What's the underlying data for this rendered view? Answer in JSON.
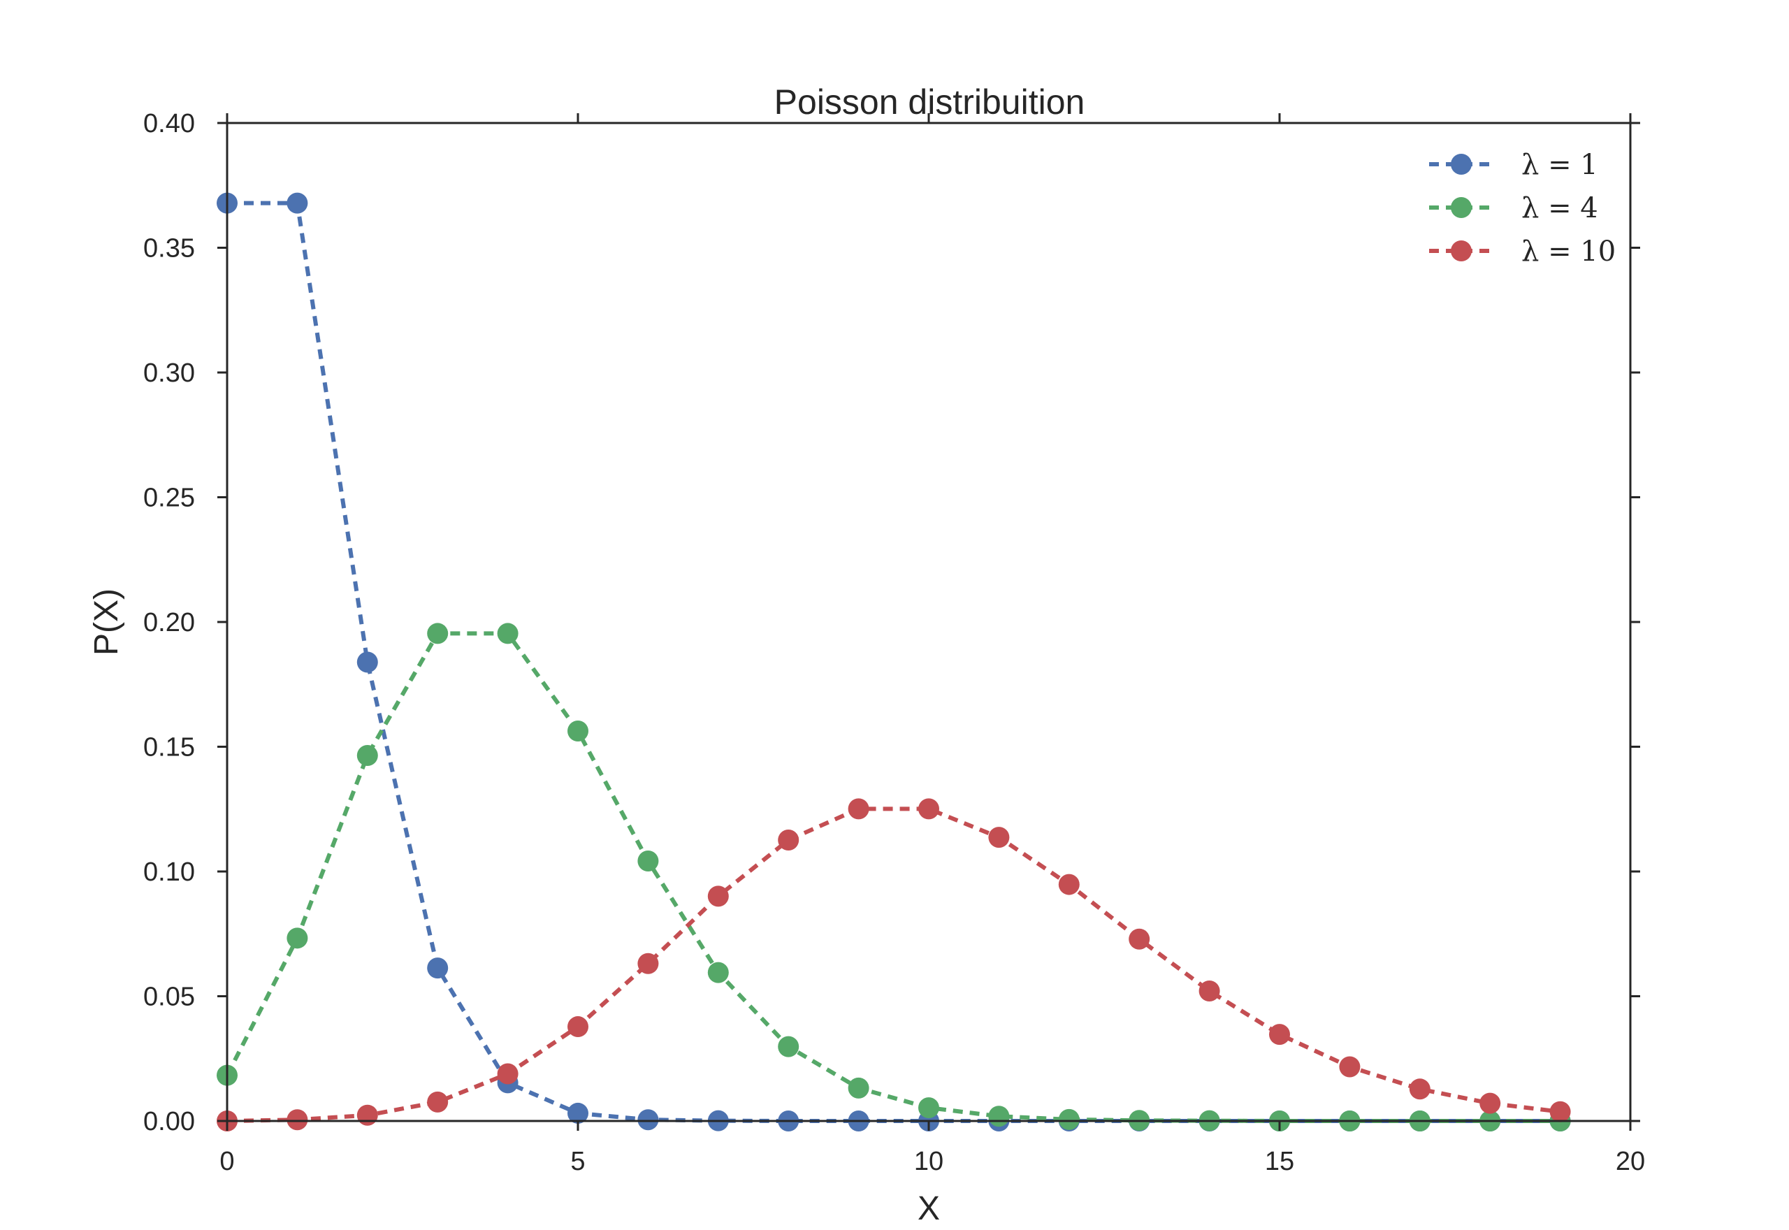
{
  "chart_data": {
    "type": "line",
    "title": "Poisson distribuition",
    "xlabel": "X",
    "ylabel": "P(X)",
    "xlim": [
      0,
      20
    ],
    "ylim": [
      0,
      0.4
    ],
    "xticks": [
      "0",
      "5",
      "10",
      "15",
      "20"
    ],
    "yticks": [
      "0.00",
      "0.05",
      "0.10",
      "0.15",
      "0.20",
      "0.25",
      "0.30",
      "0.35",
      "0.40"
    ],
    "grid": false,
    "legend_position": "top-right",
    "x": [
      0,
      1,
      2,
      3,
      4,
      5,
      6,
      7,
      8,
      9,
      10,
      11,
      12,
      13,
      14,
      15,
      16,
      17,
      18,
      19
    ],
    "series": [
      {
        "name": "λ = 1",
        "color": "#4c72b0",
        "values": [
          0.3679,
          0.3679,
          0.1839,
          0.0613,
          0.0153,
          0.0031,
          0.0005,
          0.0001,
          0.0,
          0.0,
          0.0,
          0.0,
          0.0,
          0.0,
          0.0,
          0.0,
          0.0,
          0.0,
          0.0,
          0.0
        ]
      },
      {
        "name": "λ = 4",
        "color": "#55a868",
        "values": [
          0.0183,
          0.0733,
          0.1465,
          0.1954,
          0.1954,
          0.1563,
          0.1042,
          0.0595,
          0.0298,
          0.0132,
          0.0053,
          0.0019,
          0.0006,
          0.0002,
          0.0001,
          0.0,
          0.0,
          0.0,
          0.0,
          0.0
        ]
      },
      {
        "name": "λ = 10",
        "color": "#c44e52",
        "values": [
          0.0,
          0.0005,
          0.0023,
          0.0076,
          0.0189,
          0.0378,
          0.0631,
          0.0901,
          0.1126,
          0.1251,
          0.1251,
          0.1137,
          0.0948,
          0.0729,
          0.0521,
          0.0347,
          0.0217,
          0.0128,
          0.0071,
          0.0037
        ]
      }
    ]
  }
}
